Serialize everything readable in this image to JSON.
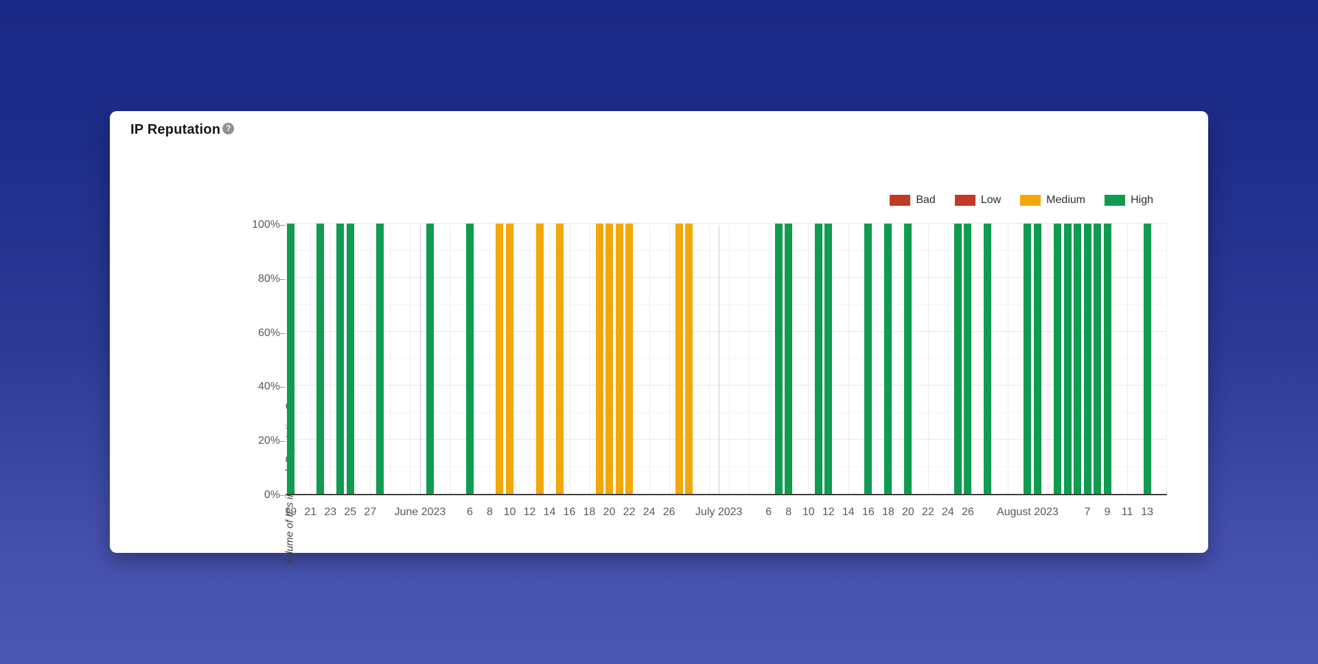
{
  "card": {
    "title": "IP Reputation",
    "help_icon": "?"
  },
  "chart_data": {
    "type": "bar",
    "title": "IP Reputation",
    "xlabel": "",
    "ylabel": "Volume of IPs in each Reputation Group",
    "ylim": [
      0,
      100
    ],
    "grid": true,
    "legend_position": "top-right",
    "y_tick_labels": [
      "0%",
      "20%",
      "40%",
      "60%",
      "80%",
      "100%"
    ],
    "x_range": {
      "start": "2023-05-19",
      "end": "2023-08-13",
      "total_days": 87
    },
    "legend": [
      {
        "label": "Bad",
        "color": "#c03a26"
      },
      {
        "label": "Low",
        "color": "#c03a26"
      },
      {
        "label": "Medium",
        "color": "#f2a80a"
      },
      {
        "label": "High",
        "color": "#109c50"
      }
    ],
    "groups": {
      "Bad": "#c03a26",
      "Low": "#c03a26",
      "Medium": "#f2a80a",
      "High": "#109c50"
    },
    "x_tick_labels": [
      {
        "day": 0,
        "label": "19"
      },
      {
        "day": 2,
        "label": "21"
      },
      {
        "day": 4,
        "label": "23"
      },
      {
        "day": 6,
        "label": "25"
      },
      {
        "day": 8,
        "label": "27"
      },
      {
        "day": 13,
        "label": "June 2023",
        "month": true
      },
      {
        "day": 18,
        "label": "6"
      },
      {
        "day": 20,
        "label": "8"
      },
      {
        "day": 22,
        "label": "10"
      },
      {
        "day": 24,
        "label": "12"
      },
      {
        "day": 26,
        "label": "14"
      },
      {
        "day": 28,
        "label": "16"
      },
      {
        "day": 30,
        "label": "18"
      },
      {
        "day": 32,
        "label": "20"
      },
      {
        "day": 34,
        "label": "22"
      },
      {
        "day": 36,
        "label": "24"
      },
      {
        "day": 38,
        "label": "26"
      },
      {
        "day": 43,
        "label": "July 2023",
        "month": true
      },
      {
        "day": 48,
        "label": "6"
      },
      {
        "day": 50,
        "label": "8"
      },
      {
        "day": 52,
        "label": "10"
      },
      {
        "day": 54,
        "label": "12"
      },
      {
        "day": 56,
        "label": "14"
      },
      {
        "day": 58,
        "label": "16"
      },
      {
        "day": 60,
        "label": "18"
      },
      {
        "day": 62,
        "label": "20"
      },
      {
        "day": 64,
        "label": "22"
      },
      {
        "day": 66,
        "label": "24"
      },
      {
        "day": 68,
        "label": "26"
      },
      {
        "day": 74,
        "label": "August 2023",
        "month": true
      },
      {
        "day": 80,
        "label": "7"
      },
      {
        "day": 82,
        "label": "9"
      },
      {
        "day": 84,
        "label": "11"
      },
      {
        "day": 86,
        "label": "13"
      }
    ],
    "month_start_days": [
      13,
      43,
      74
    ],
    "bars": [
      {
        "date": "2023-05-19",
        "day": 0,
        "group": "High",
        "value": 100
      },
      {
        "date": "2023-05-22",
        "day": 3,
        "group": "High",
        "value": 100
      },
      {
        "date": "2023-05-24",
        "day": 5,
        "group": "High",
        "value": 100
      },
      {
        "date": "2023-05-25",
        "day": 6,
        "group": "High",
        "value": 100
      },
      {
        "date": "2023-05-28",
        "day": 9,
        "group": "High",
        "value": 100
      },
      {
        "date": "2023-06-02",
        "day": 14,
        "group": "High",
        "value": 100
      },
      {
        "date": "2023-06-06",
        "day": 18,
        "group": "High",
        "value": 100
      },
      {
        "date": "2023-06-09",
        "day": 21,
        "group": "Medium",
        "value": 100
      },
      {
        "date": "2023-06-10",
        "day": 22,
        "group": "Medium",
        "value": 100
      },
      {
        "date": "2023-06-13",
        "day": 25,
        "group": "Medium",
        "value": 100
      },
      {
        "date": "2023-06-15",
        "day": 27,
        "group": "Medium",
        "value": 100
      },
      {
        "date": "2023-06-19",
        "day": 31,
        "group": "Medium",
        "value": 100
      },
      {
        "date": "2023-06-20",
        "day": 32,
        "group": "Medium",
        "value": 100
      },
      {
        "date": "2023-06-21",
        "day": 33,
        "group": "Medium",
        "value": 100
      },
      {
        "date": "2023-06-22",
        "day": 34,
        "group": "Medium",
        "value": 100
      },
      {
        "date": "2023-06-27",
        "day": 39,
        "group": "Medium",
        "value": 100
      },
      {
        "date": "2023-06-28",
        "day": 40,
        "group": "Medium",
        "value": 100
      },
      {
        "date": "2023-07-07",
        "day": 49,
        "group": "High",
        "value": 100
      },
      {
        "date": "2023-07-08",
        "day": 50,
        "group": "High",
        "value": 100
      },
      {
        "date": "2023-07-11",
        "day": 53,
        "group": "High",
        "value": 100
      },
      {
        "date": "2023-07-12",
        "day": 54,
        "group": "High",
        "value": 100
      },
      {
        "date": "2023-07-16",
        "day": 58,
        "group": "High",
        "value": 100
      },
      {
        "date": "2023-07-18",
        "day": 60,
        "group": "High",
        "value": 100
      },
      {
        "date": "2023-07-20",
        "day": 62,
        "group": "High",
        "value": 100
      },
      {
        "date": "2023-07-25",
        "day": 67,
        "group": "High",
        "value": 100
      },
      {
        "date": "2023-07-26",
        "day": 68,
        "group": "High",
        "value": 100
      },
      {
        "date": "2023-07-28",
        "day": 70,
        "group": "High",
        "value": 100
      },
      {
        "date": "2023-08-01",
        "day": 74,
        "group": "High",
        "value": 100
      },
      {
        "date": "2023-08-02",
        "day": 75,
        "group": "High",
        "value": 100
      },
      {
        "date": "2023-08-04",
        "day": 77,
        "group": "High",
        "value": 100
      },
      {
        "date": "2023-08-05",
        "day": 78,
        "group": "High",
        "value": 100
      },
      {
        "date": "2023-08-06",
        "day": 79,
        "group": "High",
        "value": 100
      },
      {
        "date": "2023-08-07",
        "day": 80,
        "group": "High",
        "value": 100
      },
      {
        "date": "2023-08-08",
        "day": 81,
        "group": "High",
        "value": 100
      },
      {
        "date": "2023-08-09",
        "day": 82,
        "group": "High",
        "value": 100
      },
      {
        "date": "2023-08-13",
        "day": 86,
        "group": "High",
        "value": 100
      }
    ]
  }
}
